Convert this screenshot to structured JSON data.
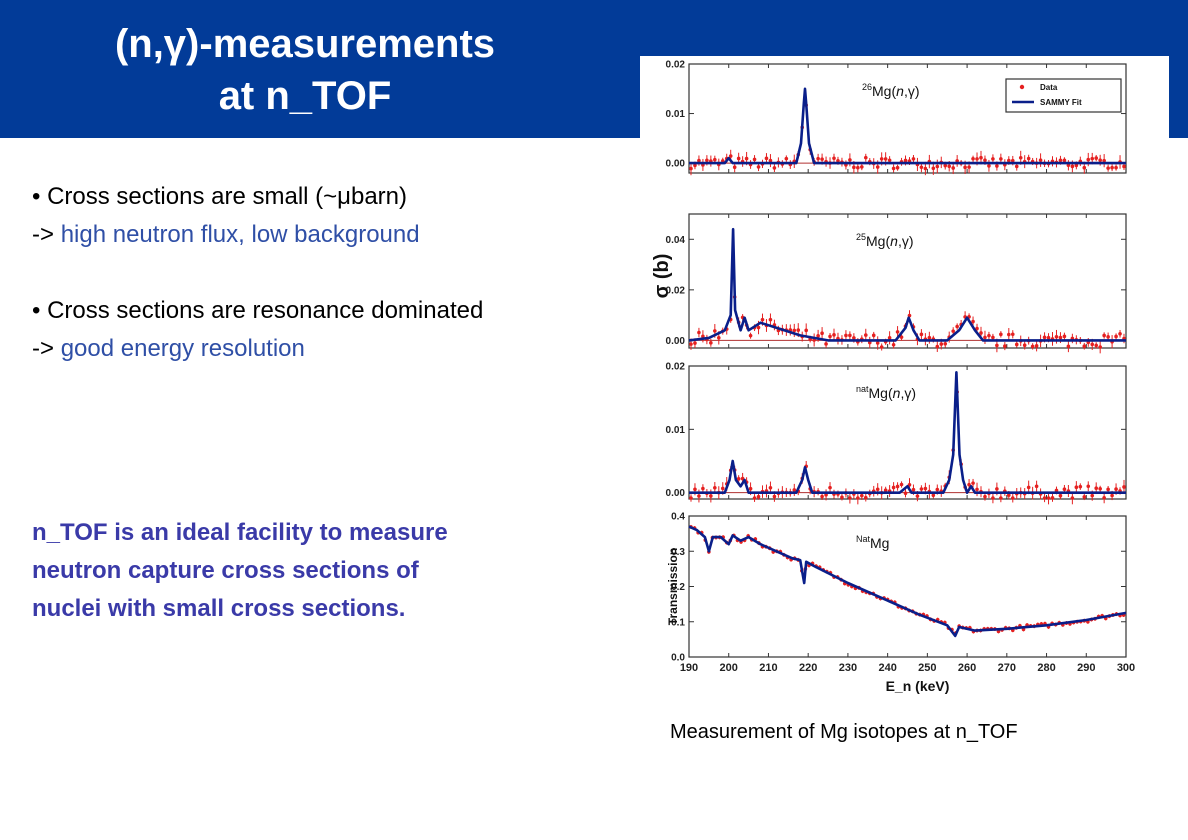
{
  "title": {
    "line1": "(n,γ)-measurements",
    "line2": "at n_TOF"
  },
  "bullets": [
    {
      "main": "• Cross sections are small (~μbarn)",
      "arrow": "-> ",
      "detail": "high neutron flux, low background"
    },
    {
      "main": "• Cross sections are resonance dominated",
      "arrow": "-> ",
      "detail": "good energy resolution"
    }
  ],
  "conclusion": {
    "lines": [
      "n_TOF is an ideal facility to measure",
      "neutron capture cross sections of",
      "nuclei with small cross sections."
    ]
  },
  "caption": "Measurement of Mg isotopes at n_TOF",
  "colors": {
    "banner": "#023b98",
    "highlight": "#2f4fa6",
    "conclusion": "#3a3aa8",
    "data": "#e52020",
    "fit": "#0a1f8a"
  },
  "chart_data": {
    "type": "line",
    "x_label": "E_n (keV)",
    "xlim": [
      190,
      300
    ],
    "x_ticks": [
      190,
      200,
      210,
      220,
      230,
      240,
      250,
      260,
      270,
      280,
      290,
      300
    ],
    "shared_y_label": "σ (b)",
    "legend": {
      "position": "top-right",
      "entries": [
        "Data",
        "SAMMY Fit"
      ]
    },
    "panels": [
      {
        "label": "26Mg(n,γ)",
        "label_sup": "26",
        "label_base": "Mg(",
        "label_n": "n",
        "label_rest": ",γ)",
        "ylim": [
          -0.002,
          0.02
        ],
        "y_ticks": [
          0.0,
          0.01,
          0.02
        ],
        "y_tick_labels": [
          "0.00",
          "0.01",
          "0.02"
        ],
        "fit": [
          [
            190,
            0.0
          ],
          [
            199,
            0.0
          ],
          [
            200,
            0.001
          ],
          [
            201,
            0.0
          ],
          [
            217,
            0.0
          ],
          [
            218.2,
            0.004
          ],
          [
            218.9,
            0.012
          ],
          [
            219.2,
            0.015
          ],
          [
            219.5,
            0.012
          ],
          [
            220.2,
            0.004
          ],
          [
            221.5,
            0.0
          ],
          [
            300,
            0.0
          ]
        ]
      },
      {
        "label": "25Mg(n,γ)",
        "label_sup": "25",
        "label_base": "Mg(",
        "label_n": "n",
        "label_rest": ",γ)",
        "ylim": [
          -0.003,
          0.05
        ],
        "y_ticks": [
          0.0,
          0.02,
          0.04
        ],
        "y_tick_labels": [
          "0.00",
          "0.02",
          "0.04"
        ],
        "fit": [
          [
            190,
            0.0
          ],
          [
            195,
            0.001
          ],
          [
            199,
            0.004
          ],
          [
            200.5,
            0.01
          ],
          [
            201.1,
            0.044
          ],
          [
            201.6,
            0.012
          ],
          [
            203,
            0.004
          ],
          [
            204,
            0.009
          ],
          [
            205,
            0.004
          ],
          [
            208,
            0.007
          ],
          [
            212,
            0.005
          ],
          [
            218,
            0.002
          ],
          [
            225,
            0.0
          ],
          [
            242,
            0.0
          ],
          [
            244.5,
            0.005
          ],
          [
            245.3,
            0.009
          ],
          [
            246.5,
            0.004
          ],
          [
            248,
            0.0
          ],
          [
            255,
            0.0
          ],
          [
            258,
            0.004
          ],
          [
            260,
            0.009
          ],
          [
            262,
            0.004
          ],
          [
            264,
            0.0
          ],
          [
            300,
            0.0
          ]
        ]
      },
      {
        "label": "natMg(n,γ)",
        "label_sup": "nat",
        "label_base": "Mg(",
        "label_n": "n",
        "label_rest": ",γ)",
        "ylim": [
          -0.001,
          0.02
        ],
        "y_ticks": [
          0.0,
          0.01,
          0.02
        ],
        "y_tick_labels": [
          "0.00",
          "0.01",
          "0.02"
        ],
        "fit": [
          [
            190,
            0.0
          ],
          [
            199,
            0.0
          ],
          [
            200.2,
            0.002
          ],
          [
            201,
            0.005
          ],
          [
            201.8,
            0.002
          ],
          [
            203,
            0.001
          ],
          [
            204,
            0.002
          ],
          [
            205,
            0.0
          ],
          [
            217,
            0.0
          ],
          [
            218.5,
            0.002
          ],
          [
            219.2,
            0.004
          ],
          [
            220,
            0.002
          ],
          [
            221,
            0.0
          ],
          [
            243,
            0.0
          ],
          [
            245,
            0.001
          ],
          [
            246,
            0.0
          ],
          [
            254,
            0.0
          ],
          [
            255.5,
            0.002
          ],
          [
            256.5,
            0.006
          ],
          [
            257.3,
            0.019
          ],
          [
            258.1,
            0.006
          ],
          [
            259,
            0.002
          ],
          [
            260,
            0.0
          ],
          [
            261,
            0.001
          ],
          [
            262,
            0.0
          ],
          [
            300,
            0.0
          ]
        ]
      },
      {
        "label": "NatMg",
        "label_sup": "Nat",
        "label_base": "Mg",
        "label_n": "",
        "label_rest": "",
        "y_label": "Transmission",
        "ylim": [
          0.0,
          0.4
        ],
        "y_ticks": [
          0.0,
          0.1,
          0.2,
          0.3,
          0.4
        ],
        "y_tick_labels": [
          "0.0",
          "0.1",
          "0.2",
          "0.3",
          "0.4"
        ],
        "fit": [
          [
            190,
            0.37
          ],
          [
            192,
            0.36
          ],
          [
            194,
            0.34
          ],
          [
            195,
            0.3
          ],
          [
            196,
            0.34
          ],
          [
            198,
            0.34
          ],
          [
            200,
            0.32
          ],
          [
            201,
            0.345
          ],
          [
            203,
            0.33
          ],
          [
            205,
            0.34
          ],
          [
            208,
            0.32
          ],
          [
            212,
            0.3
          ],
          [
            216,
            0.28
          ],
          [
            218,
            0.275
          ],
          [
            219,
            0.21
          ],
          [
            219.5,
            0.27
          ],
          [
            222,
            0.255
          ],
          [
            230,
            0.21
          ],
          [
            240,
            0.16
          ],
          [
            248,
            0.12
          ],
          [
            255,
            0.09
          ],
          [
            257,
            0.06
          ],
          [
            258,
            0.085
          ],
          [
            262,
            0.075
          ],
          [
            270,
            0.08
          ],
          [
            280,
            0.09
          ],
          [
            290,
            0.105
          ],
          [
            300,
            0.125
          ]
        ]
      }
    ]
  }
}
